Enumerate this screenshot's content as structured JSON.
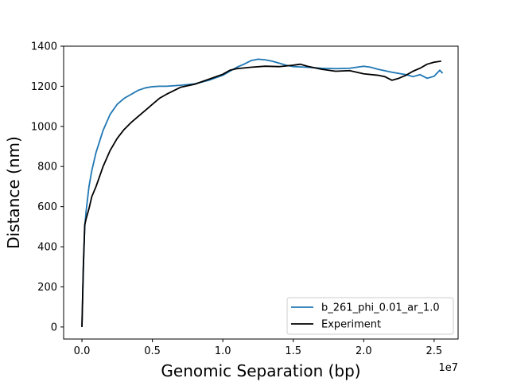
{
  "chart_data": {
    "type": "line",
    "title": "",
    "xlabel": "Genomic Separation (bp)",
    "ylabel": "Distance (nm)",
    "x_offset_label": "1e7",
    "x_tick_values": [
      0.0,
      0.5,
      1.0,
      1.5,
      2.0,
      2.5
    ],
    "x_tick_labels": [
      "0.0",
      "0.5",
      "1.0",
      "1.5",
      "2.0",
      "2.5"
    ],
    "y_tick_values": [
      0,
      200,
      400,
      600,
      800,
      1000,
      1200,
      1400
    ],
    "y_tick_labels": [
      "0",
      "200",
      "400",
      "600",
      "800",
      "1000",
      "1200",
      "1400"
    ],
    "xlim": [
      -1300000.0,
      26700000.0
    ],
    "ylim": [
      -60,
      1400
    ],
    "grid": false,
    "legend": "lower-right",
    "series": [
      {
        "name": "b_261_phi_0.01_ar_1.0",
        "color": "#1f77b4",
        "x": [
          0,
          100000.0,
          200000.0,
          300000.0,
          500000.0,
          700000.0,
          1000000.0,
          1500000.0,
          2000000.0,
          2500000.0,
          3000000.0,
          3500000.0,
          4000000.0,
          4500000.0,
          5000000.0,
          5500000.0,
          6000000.0,
          7000000.0,
          8000000.0,
          9000000.0,
          10000000.0,
          10500000.0,
          11000000.0,
          11500000.0,
          12000000.0,
          12500000.0,
          13000000.0,
          13500000.0,
          14000000.0,
          14500000.0,
          15000000.0,
          16000000.0,
          17000000.0,
          18000000.0,
          19000000.0,
          20000000.0,
          20500000.0,
          21000000.0,
          22000000.0,
          23000000.0,
          23500000.0,
          24000000.0,
          24500000.0,
          25000000.0,
          25200000.0,
          25400000.0,
          25600000.0
        ],
        "y": [
          0,
          300,
          500,
          580,
          700,
          780,
          870,
          980,
          1060,
          1110,
          1140,
          1160,
          1180,
          1192,
          1198,
          1200,
          1200,
          1205,
          1212,
          1230,
          1255,
          1275,
          1295,
          1310,
          1328,
          1335,
          1332,
          1325,
          1315,
          1305,
          1298,
          1295,
          1290,
          1288,
          1290,
          1300,
          1295,
          1285,
          1270,
          1258,
          1248,
          1258,
          1240,
          1250,
          1265,
          1280,
          1265
        ]
      },
      {
        "name": "Experiment",
        "color": "#000000",
        "x": [
          0,
          100000.0,
          200000.0,
          300000.0,
          500000.0,
          700000.0,
          1000000.0,
          1500000.0,
          2000000.0,
          2500000.0,
          3000000.0,
          3500000.0,
          4000000.0,
          4500000.0,
          5000000.0,
          5500000.0,
          6000000.0,
          7000000.0,
          8000000.0,
          9000000.0,
          10000000.0,
          10500000.0,
          11000000.0,
          12000000.0,
          13000000.0,
          14000000.0,
          15000000.0,
          15500000.0,
          16000000.0,
          17000000.0,
          18000000.0,
          19000000.0,
          20000000.0,
          21000000.0,
          21500000.0,
          22000000.0,
          22500000.0,
          23000000.0,
          23500000.0,
          24000000.0,
          24500000.0,
          25000000.0,
          25500000.0
        ],
        "y": [
          0,
          300,
          510,
          540,
          590,
          650,
          700,
          800,
          880,
          940,
          985,
          1020,
          1050,
          1080,
          1110,
          1140,
          1160,
          1195,
          1210,
          1235,
          1260,
          1280,
          1288,
          1295,
          1300,
          1298,
          1305,
          1310,
          1300,
          1285,
          1275,
          1278,
          1262,
          1255,
          1248,
          1230,
          1240,
          1255,
          1275,
          1290,
          1310,
          1320,
          1325
        ]
      }
    ]
  }
}
